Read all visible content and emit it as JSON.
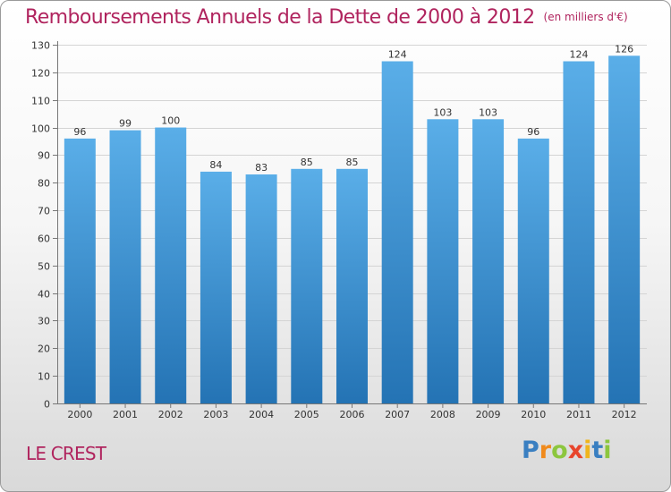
{
  "title": "Remboursements Annuels de la Dette de 2000 à 2012",
  "unit": "(en milliers d'€)",
  "town": "LE CREST",
  "logo": {
    "text": "Proxiti",
    "letters": [
      {
        "ch": "P",
        "color": "#3a7fc1"
      },
      {
        "ch": "r",
        "color": "#f08a1c"
      },
      {
        "ch": "o",
        "color": "#8cc63e"
      },
      {
        "ch": "x",
        "color": "#e8452c"
      },
      {
        "ch": "i",
        "color": "#f0b51c"
      },
      {
        "ch": "t",
        "color": "#3a7fc1"
      },
      {
        "ch": "i",
        "color": "#8cc63e"
      }
    ]
  },
  "colors": {
    "title": "#b0245e",
    "bar_top": "#5aaee8",
    "bar_bottom": "#2473b4"
  },
  "chart_data": {
    "type": "bar",
    "title": "Remboursements Annuels de la Dette de 2000 à 2012",
    "categories": [
      "2000",
      "2001",
      "2002",
      "2003",
      "2004",
      "2005",
      "2006",
      "2007",
      "2008",
      "2009",
      "2010",
      "2011",
      "2012"
    ],
    "values": [
      96,
      99,
      100,
      84,
      83,
      85,
      85,
      124,
      103,
      103,
      96,
      124,
      126
    ],
    "ylim": [
      0,
      130
    ],
    "yticks": [
      0,
      10,
      20,
      30,
      40,
      50,
      60,
      70,
      80,
      90,
      100,
      110,
      120,
      130
    ],
    "grid": true,
    "data_labels": true
  }
}
